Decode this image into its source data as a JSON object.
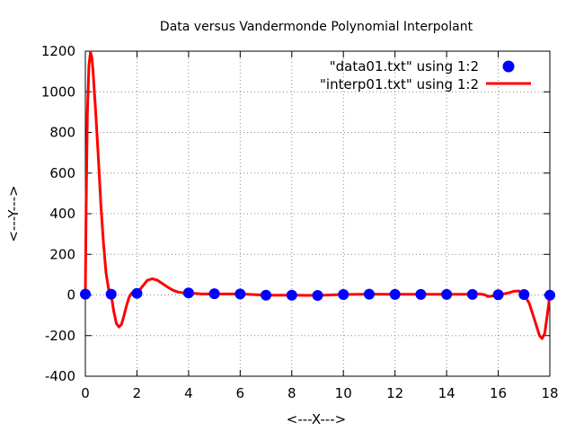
{
  "chart_data": {
    "type": "line",
    "title": "Data versus Vandermonde Polynomial Interpolant",
    "xlabel": "<---X--->",
    "ylabel": "<---Y--->",
    "xlim": [
      0,
      18
    ],
    "ylim": [
      -400,
      1200
    ],
    "xticks": [
      0,
      2,
      4,
      6,
      8,
      10,
      12,
      14,
      16,
      18
    ],
    "yticks": [
      -400,
      -200,
      0,
      200,
      400,
      600,
      800,
      1000,
      1200
    ],
    "xtick_labels": [
      "0",
      "2",
      "4",
      "6",
      "8",
      "10",
      "12",
      "14",
      "16",
      "18"
    ],
    "ytick_labels": [
      "-400",
      "-200",
      "0",
      "200",
      "400",
      "600",
      "800",
      "1000",
      "1200"
    ],
    "grid": true,
    "legend_position": "top-right",
    "series": [
      {
        "name": "\"data01.txt\" using 1:2",
        "kind": "points",
        "color": "#0000ff",
        "x": [
          0,
          1,
          2,
          4,
          5,
          6,
          7,
          8,
          9,
          10,
          11,
          12,
          13,
          14,
          15,
          16,
          17,
          18
        ],
        "y": [
          4,
          4,
          8,
          10,
          6,
          5,
          -1,
          -1,
          -2,
          2,
          4,
          3,
          3,
          3,
          3,
          1,
          2,
          -1
        ]
      },
      {
        "name": "\"interp01.txt\" using 1:2",
        "kind": "line",
        "color": "#ff0000",
        "x": [
          0,
          0.03,
          0.08,
          0.14,
          0.2,
          0.25,
          0.3,
          0.4,
          0.5,
          0.6,
          0.7,
          0.8,
          0.9,
          1.0,
          1.1,
          1.2,
          1.3,
          1.4,
          1.5,
          1.6,
          1.7,
          1.8,
          1.9,
          2.0,
          2.2,
          2.4,
          2.6,
          2.8,
          3.0,
          3.2,
          3.4,
          3.6,
          3.8,
          4.0,
          4.5,
          5,
          6,
          7,
          8,
          9,
          10,
          11,
          12,
          13,
          14,
          15,
          15.3,
          15.5,
          15.6,
          15.8,
          16.0,
          16.2,
          16.4,
          16.6,
          16.8,
          17.0,
          17.2,
          17.4,
          17.6,
          17.7,
          17.8,
          17.9,
          18.0
        ],
        "y": [
          4,
          450,
          900,
          1130,
          1195,
          1170,
          1100,
          900,
          680,
          450,
          260,
          110,
          30,
          4,
          -80,
          -140,
          -158,
          -145,
          -100,
          -50,
          -10,
          10,
          15,
          8,
          40,
          72,
          80,
          72,
          55,
          38,
          23,
          14,
          10,
          10,
          5,
          5,
          5,
          -1,
          -1,
          -2,
          2,
          4,
          3,
          3,
          3,
          3,
          5,
          0,
          -8,
          -5,
          1,
          5,
          10,
          18,
          20,
          2,
          -40,
          -120,
          -200,
          -215,
          -190,
          -100,
          -1
        ]
      }
    ]
  }
}
